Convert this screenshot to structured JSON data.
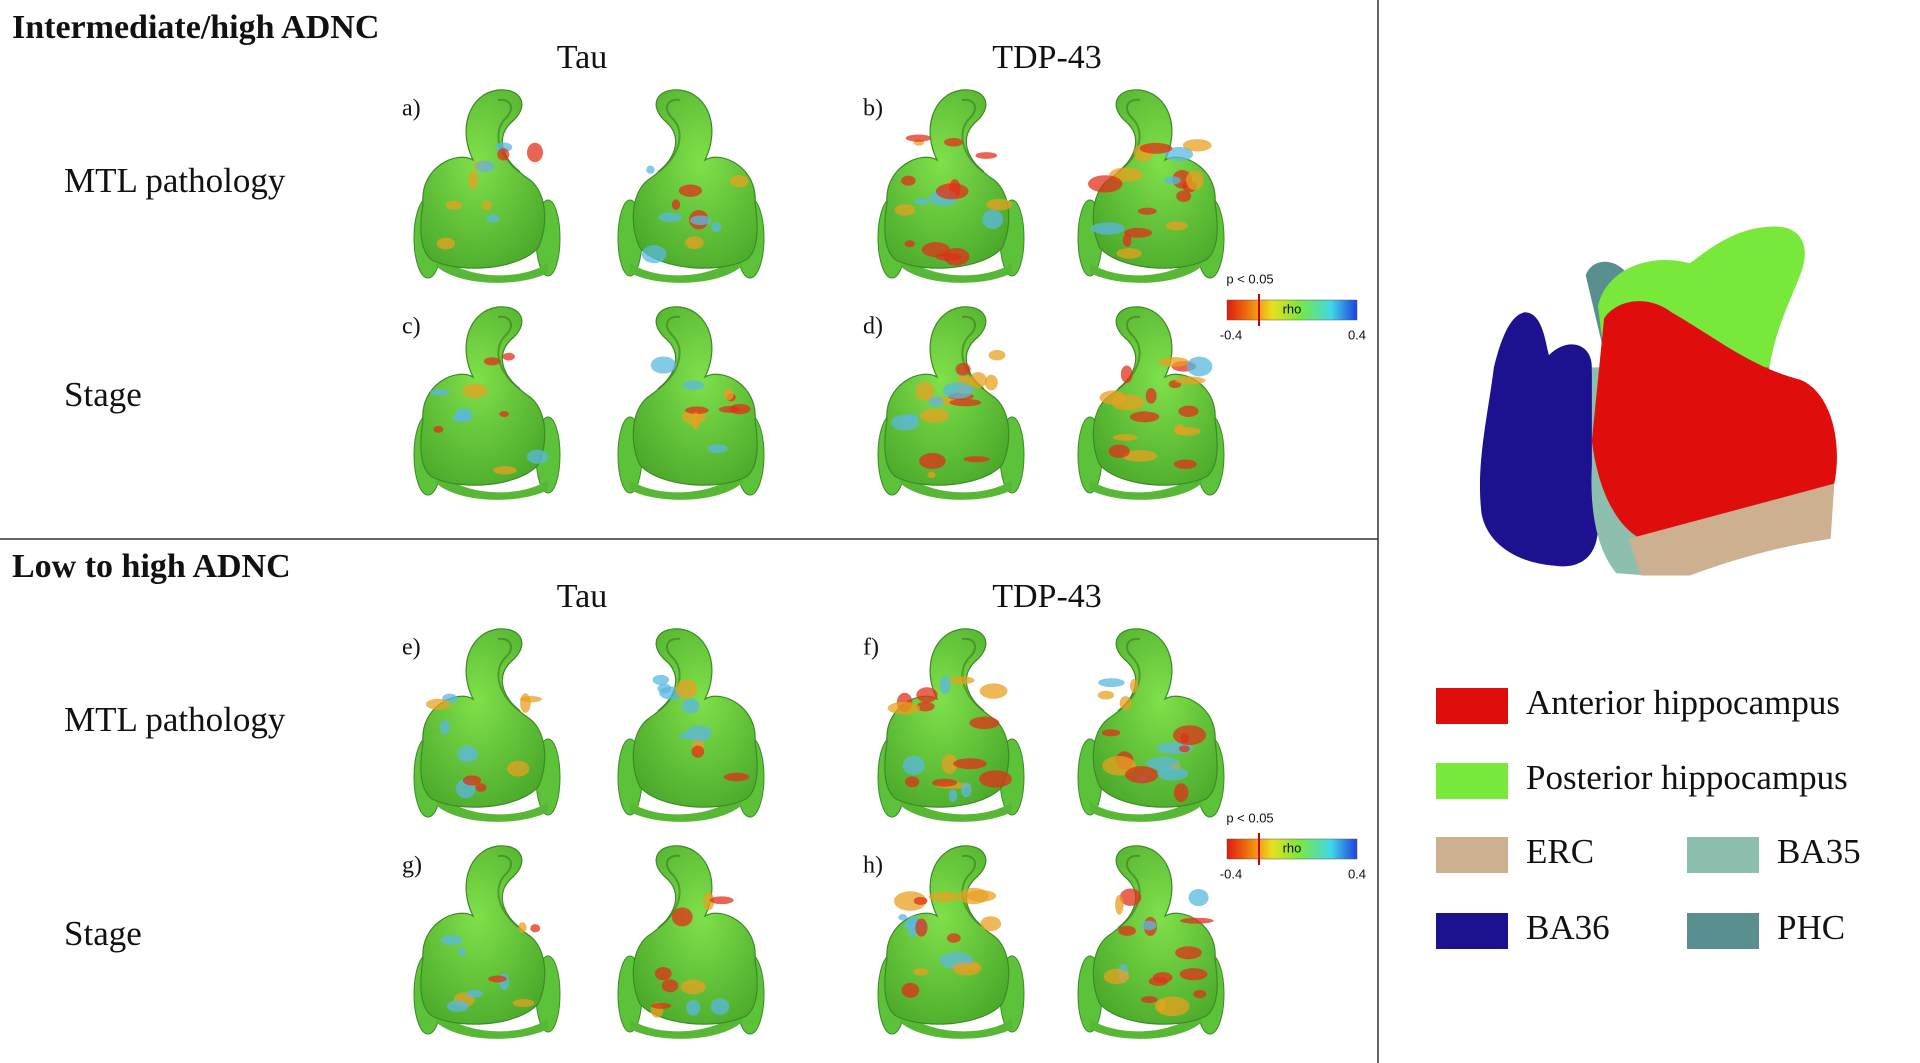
{
  "sections": [
    {
      "title": "Intermediate/high ADNC",
      "columns": [
        "Tau",
        "TDP-43"
      ],
      "rows": [
        "MTL pathology",
        "Stage"
      ],
      "panels": [
        "a)",
        "b)",
        "c)",
        "d)"
      ],
      "colorbar": {
        "threshold": "p < 0.05",
        "label": "rho",
        "min": "-0.4",
        "max": "0.4"
      }
    },
    {
      "title": "Low to high ADNC",
      "columns": [
        "Tau",
        "TDP-43"
      ],
      "rows": [
        "MTL pathology",
        "Stage"
      ],
      "panels": [
        "e)",
        "f)",
        "g)",
        "h)"
      ],
      "colorbar": {
        "threshold": "p < 0.05",
        "label": "rho",
        "min": "-0.4",
        "max": "0.4"
      }
    }
  ],
  "legend": [
    {
      "label": "Anterior hippocampus",
      "color": "#e00d0d"
    },
    {
      "label": "Posterior hippocampus",
      "color": "#78e83a"
    },
    {
      "label": "ERC",
      "color": "#cdb08f"
    },
    {
      "label": "BA35",
      "color": "#8dbfae"
    },
    {
      "label": "BA36",
      "color": "#1c1290"
    },
    {
      "label": "PHC",
      "color": "#5a8f8f"
    }
  ]
}
